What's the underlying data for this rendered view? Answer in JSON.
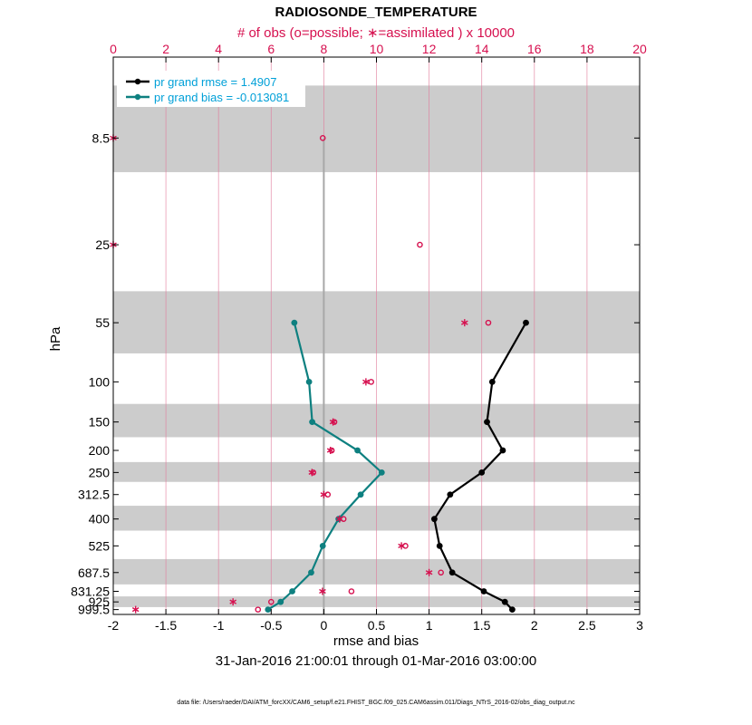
{
  "chart_data": {
    "type": "line",
    "title": "RADIOSONDE_TEMPERATURE",
    "top_axis_label": "# of obs (o=possible; ∗=assimilated ) x 10000",
    "xlabel": "rmse and bias",
    "ylabel": "hPa",
    "date_range": "31-Jan-2016 21:00:01 through 01-Mar-2016 03:00:00",
    "xlim": [
      -2,
      3
    ],
    "x_ticks": [
      -2,
      -1.5,
      -1,
      -0.5,
      0,
      0.5,
      1,
      1.5,
      2,
      2.5,
      3
    ],
    "top_xlim": [
      0,
      20
    ],
    "top_ticks": [
      0,
      2,
      4,
      6,
      8,
      10,
      12,
      14,
      16,
      18,
      20
    ],
    "levels": [
      8.5,
      25,
      55,
      100,
      150,
      200,
      250,
      312.5,
      400,
      525,
      687.5,
      831.25,
      925,
      999.5
    ],
    "level_labels": [
      "8.5",
      "25",
      "55",
      "100",
      "150",
      "200",
      "250",
      "312.5",
      "400",
      "525",
      "687.5",
      "831.25",
      "925",
      "999.5"
    ],
    "series": [
      {
        "name": "pr grand rmse",
        "legend": "pr grand rmse = 1.4907",
        "color": "#000000",
        "levels": [
          55,
          100,
          150,
          200,
          250,
          312.5,
          400,
          525,
          687.5,
          831.25,
          925,
          999.5
        ],
        "values": [
          1.92,
          1.6,
          1.55,
          1.7,
          1.5,
          1.2,
          1.05,
          1.1,
          1.22,
          1.52,
          1.72,
          1.79
        ]
      },
      {
        "name": "pr grand bias",
        "legend": "pr grand bias = -0.013081",
        "color": "#0e8080",
        "levels": [
          55,
          100,
          150,
          200,
          250,
          312.5,
          400,
          525,
          687.5,
          831.25,
          925,
          999.5
        ],
        "values": [
          -0.28,
          -0.14,
          -0.11,
          0.32,
          0.55,
          0.35,
          0.14,
          -0.01,
          -0.12,
          -0.3,
          -0.41,
          -0.53
        ]
      }
    ],
    "obs_possible": {
      "levels": [
        8.5,
        25,
        55,
        100,
        150,
        200,
        250,
        312.5,
        400,
        525,
        687.5,
        831.25,
        925,
        999.5
      ],
      "values": [
        7.96,
        11.65,
        14.25,
        9.8,
        8.4,
        8.3,
        7.6,
        8.15,
        8.75,
        11.1,
        12.45,
        9.05,
        6.0,
        5.5
      ]
    },
    "obs_assimilated": {
      "levels": [
        8.5,
        25,
        55,
        100,
        150,
        200,
        250,
        312.5,
        400,
        525,
        687.5,
        831.25,
        925,
        999.5
      ],
      "values": [
        0.0,
        0.0,
        13.35,
        9.6,
        8.35,
        8.25,
        7.55,
        8.0,
        8.6,
        10.95,
        12.0,
        7.95,
        4.55,
        0.85
      ]
    },
    "shaded_bands_hPa": [
      [
        5,
        12
      ],
      [
        40,
        75
      ],
      [
        125,
        175
      ],
      [
        225,
        275
      ],
      [
        350,
        450
      ],
      [
        600,
        775
      ],
      [
        875,
        975
      ]
    ],
    "colors": {
      "rmse": "#000000",
      "bias": "#0e8080",
      "obs": "#d6104f",
      "legend_text": "#00a0d8",
      "band": "#cccccc",
      "grid": "#e07a9a"
    }
  },
  "footer": "data file: /Users/raeder/DAI/ATM_forcXX/CAM6_setup/f.e21.FHIST_BGC.f09_025.CAM6assim.011/Diags_NTrS_2016-02/obs_diag_output.nc"
}
